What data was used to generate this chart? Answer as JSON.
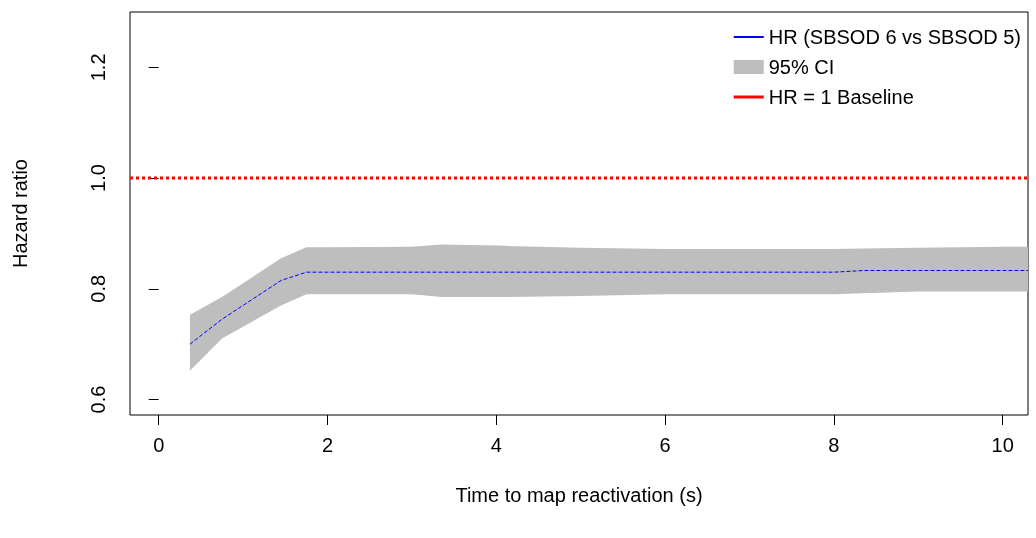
{
  "chart_data": {
    "type": "line",
    "xlabel": "Time to map reactivation (s)",
    "ylabel": "Hazard ratio",
    "x": [
      0.37,
      0.75,
      1.1,
      1.45,
      1.75,
      2,
      3,
      3.35,
      4,
      5,
      6,
      7,
      8,
      8.35,
      9,
      10,
      10.3
    ],
    "series": [
      {
        "name": "HR (SBSOD 6 vs SBSOD 5)",
        "color": "#0000ff",
        "line_style": "dashed",
        "values": [
          0.7,
          0.745,
          0.78,
          0.815,
          0.83,
          0.83,
          0.83,
          0.83,
          0.83,
          0.83,
          0.83,
          0.83,
          0.83,
          0.833,
          0.833,
          0.833,
          0.833
        ],
        "lower": [
          0.652,
          0.71,
          0.74,
          0.77,
          0.79,
          0.79,
          0.79,
          0.785,
          0.785,
          0.787,
          0.79,
          0.79,
          0.79,
          0.792,
          0.795,
          0.795,
          0.795
        ],
        "upper": [
          0.753,
          0.785,
          0.82,
          0.855,
          0.875,
          0.875,
          0.876,
          0.88,
          0.878,
          0.874,
          0.872,
          0.872,
          0.872,
          0.873,
          0.874,
          0.876,
          0.876
        ]
      }
    ],
    "annotations": [
      "95% CI"
    ],
    "ref_lines": [
      {
        "axis": "y",
        "value": 1,
        "label": "HR = 1 Baseline",
        "color": "#ff0000",
        "line_style": "dotted"
      }
    ],
    "xlim": [
      -0.34,
      10.3
    ],
    "xticks": [
      0,
      2,
      4,
      6,
      8,
      10
    ],
    "ylim": [
      0.572,
      1.3
    ],
    "yticks": [
      0.6,
      0.8,
      {
        "value": 1,
        "label": "1.0"
      },
      1.2
    ],
    "grid": false,
    "legend": "top right",
    "marker": "none"
  }
}
